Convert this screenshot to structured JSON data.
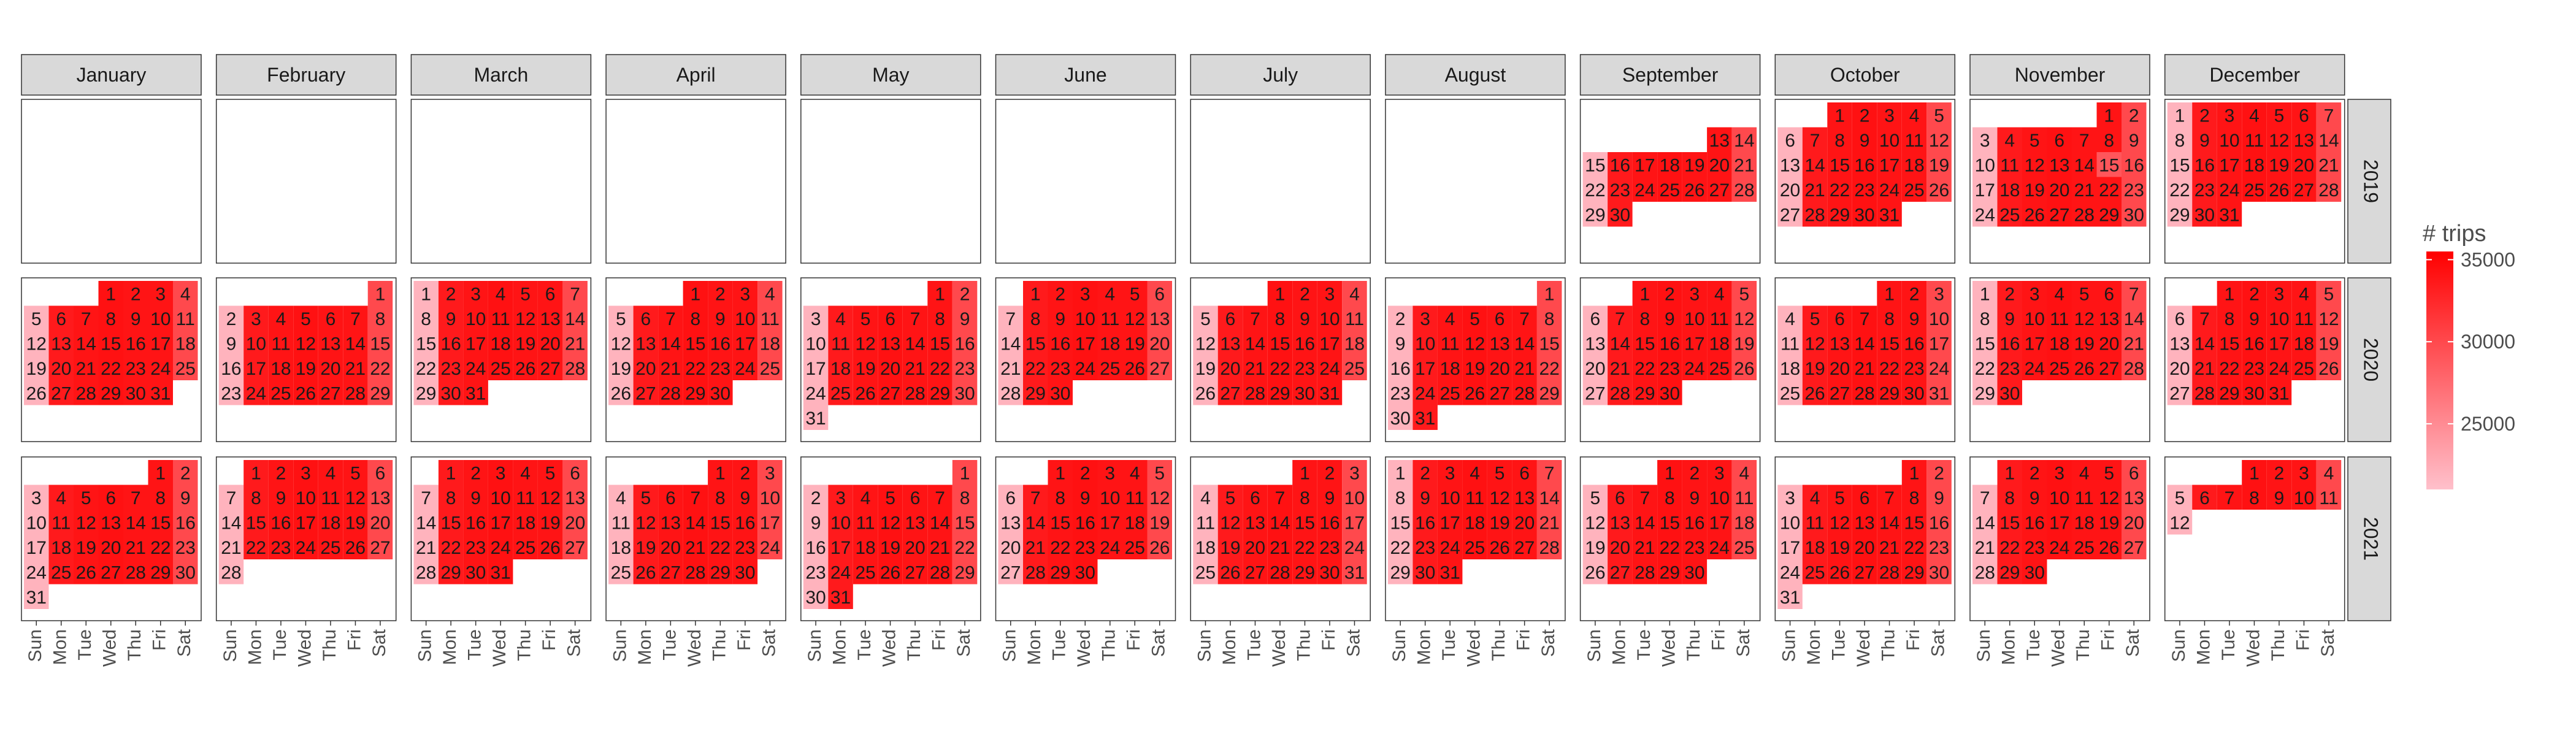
{
  "chart_data": {
    "type": "heatmap",
    "subtype": "calendar",
    "months": [
      "January",
      "February",
      "March",
      "April",
      "May",
      "June",
      "July",
      "August",
      "September",
      "October",
      "November",
      "December"
    ],
    "years": [
      "2019",
      "2020",
      "2021"
    ],
    "weekdays": [
      "Sun",
      "Mon",
      "Tue",
      "Wed",
      "Thu",
      "Fri",
      "Sat"
    ],
    "color_low": "#ffc0cb",
    "color_high": "#ff0000",
    "legend": {
      "title": "# trips",
      "ticks": [
        "25000",
        "30000",
        "35000"
      ],
      "tick_values": [
        25000,
        30000,
        35000
      ],
      "range": [
        21000,
        35500
      ],
      "placement": "right"
    },
    "date_range": [
      "2019-09-13",
      "2021-12-12"
    ],
    "value_model": {
      "weekday_values": [
        22000,
        33500,
        34000,
        34200,
        34000,
        34000,
        30000
      ]
    },
    "cells": [
      {
        "date": "2019-11-15",
        "value": 29000
      }
    ]
  }
}
